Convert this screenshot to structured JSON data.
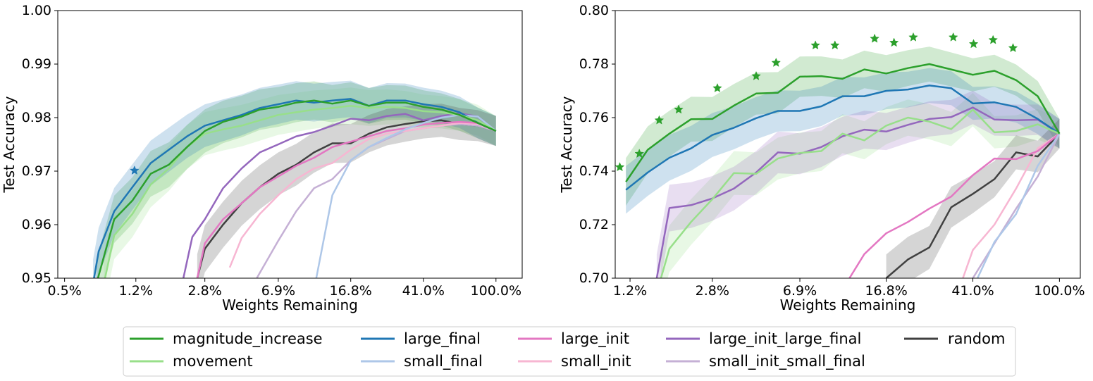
{
  "chart_data": [
    {
      "type": "line",
      "xlabel": "Weights Remaining",
      "ylabel": "Test Accuracy",
      "ylim": [
        0.95,
        1.0
      ],
      "x_scale": "log",
      "x_ticks": [
        {
          "value": 1.0,
          "label": "100.0%"
        },
        {
          "value": 0.41,
          "label": "41.0%"
        },
        {
          "value": 0.168,
          "label": "16.8%"
        },
        {
          "value": 0.069,
          "label": "6.9%"
        },
        {
          "value": 0.028,
          "label": "2.8%"
        },
        {
          "value": 0.012,
          "label": "1.2%"
        },
        {
          "value": 0.005,
          "label": "0.5%"
        }
      ],
      "y_ticks": [
        "0.95",
        "0.96",
        "0.97",
        "0.98",
        "0.99",
        "1.00"
      ],
      "series": [
        {
          "name": "magnitude_increase",
          "color": "#2ca02c",
          "band": true,
          "x": [
            1.0,
            0.8,
            0.64,
            0.512,
            0.41,
            0.328,
            0.262,
            0.21,
            0.168,
            0.134,
            0.107,
            0.086,
            0.069,
            0.055,
            0.044,
            0.035,
            0.028,
            0.0225,
            0.018,
            0.0144,
            0.0115,
            0.0092,
            0.0074
          ],
          "y": [
            0.9775,
            0.979,
            0.9805,
            0.9815,
            0.982,
            0.9828,
            0.9828,
            0.9822,
            0.9832,
            0.9826,
            0.9832,
            0.9828,
            0.982,
            0.9815,
            0.9802,
            0.9792,
            0.9775,
            0.9745,
            0.9712,
            0.9695,
            0.9645,
            0.961,
            0.949
          ]
        },
        {
          "name": "movement",
          "color": "#98df8a",
          "band": true,
          "x": [
            1.0,
            0.8,
            0.64,
            0.512,
            0.41,
            0.328,
            0.262,
            0.21,
            0.168,
            0.134,
            0.107,
            0.086,
            0.069,
            0.055,
            0.044,
            0.035,
            0.028,
            0.0225,
            0.018,
            0.0144,
            0.0115,
            0.0092,
            0.0081
          ],
          "y": [
            0.9775,
            0.9795,
            0.9805,
            0.981,
            0.9812,
            0.9818,
            0.982,
            0.9818,
            0.9822,
            0.9818,
            0.9815,
            0.981,
            0.9805,
            0.9795,
            0.9785,
            0.9778,
            0.977,
            0.9745,
            0.9705,
            0.9675,
            0.962,
            0.958,
            0.949
          ]
        },
        {
          "name": "large_final",
          "color": "#1f77b4",
          "band": true,
          "x": [
            1.0,
            0.8,
            0.64,
            0.512,
            0.41,
            0.328,
            0.262,
            0.21,
            0.168,
            0.134,
            0.107,
            0.086,
            0.069,
            0.055,
            0.044,
            0.035,
            0.028,
            0.0225,
            0.018,
            0.0144,
            0.0115,
            0.0092,
            0.0076,
            0.0071
          ],
          "y": [
            0.9775,
            0.979,
            0.981,
            0.982,
            0.9825,
            0.9832,
            0.9832,
            0.9822,
            0.9835,
            0.9832,
            0.9828,
            0.9832,
            0.9825,
            0.9818,
            0.9805,
            0.9795,
            0.9785,
            0.9765,
            0.974,
            0.9715,
            0.967,
            0.9625,
            0.955,
            0.949
          ]
        },
        {
          "name": "small_final",
          "color": "#aec7e8",
          "band": false,
          "x": [
            1.0,
            0.8,
            0.64,
            0.512,
            0.41,
            0.328,
            0.262,
            0.21,
            0.168,
            0.134,
            0.11
          ],
          "y": [
            0.9775,
            0.9802,
            0.9805,
            0.98,
            0.979,
            0.9778,
            0.9762,
            0.9745,
            0.972,
            0.9655,
            0.95
          ]
        },
        {
          "name": "large_init",
          "color": "#e377c2",
          "band": false,
          "x": [
            1.0,
            0.8,
            0.64,
            0.512,
            0.41,
            0.328,
            0.262,
            0.21,
            0.168,
            0.134,
            0.107,
            0.086,
            0.069,
            0.055,
            0.044,
            0.035,
            0.028,
            0.0255
          ],
          "y": [
            0.9775,
            0.979,
            0.9792,
            0.979,
            0.9787,
            0.978,
            0.9775,
            0.9765,
            0.9755,
            0.9745,
            0.9725,
            0.971,
            0.969,
            0.967,
            0.964,
            0.961,
            0.9565,
            0.95
          ]
        },
        {
          "name": "small_init",
          "color": "#f7b6d2",
          "band": false,
          "x": [
            1.0,
            0.8,
            0.64,
            0.512,
            0.41,
            0.328,
            0.262,
            0.21,
            0.168,
            0.134,
            0.107,
            0.086,
            0.069,
            0.055,
            0.044,
            0.038
          ],
          "y": [
            0.9775,
            0.9788,
            0.979,
            0.9785,
            0.978,
            0.9775,
            0.977,
            0.976,
            0.974,
            0.9715,
            0.9705,
            0.9685,
            0.9655,
            0.962,
            0.9575,
            0.952
          ]
        },
        {
          "name": "large_init_large_final",
          "color": "#9467bd",
          "band": false,
          "x": [
            1.0,
            0.8,
            0.64,
            0.512,
            0.41,
            0.328,
            0.262,
            0.21,
            0.168,
            0.134,
            0.107,
            0.086,
            0.069,
            0.055,
            0.044,
            0.035,
            0.028,
            0.024,
            0.0215
          ],
          "y": [
            0.9775,
            0.9802,
            0.9808,
            0.9803,
            0.9795,
            0.9807,
            0.9803,
            0.9795,
            0.9798,
            0.9785,
            0.9773,
            0.9765,
            0.975,
            0.9735,
            0.9705,
            0.9668,
            0.961,
            0.9577,
            0.95
          ]
        },
        {
          "name": "small_init_small_final",
          "color": "#c5b0d5",
          "band": false,
          "x": [
            1.0,
            0.8,
            0.64,
            0.512,
            0.41,
            0.328,
            0.262,
            0.21,
            0.168,
            0.134,
            0.107,
            0.086,
            0.069,
            0.055,
            0.053
          ],
          "y": [
            0.9775,
            0.9785,
            0.9788,
            0.9785,
            0.978,
            0.9775,
            0.976,
            0.9745,
            0.972,
            0.9685,
            0.9668,
            0.9625,
            0.957,
            0.951,
            0.95
          ]
        },
        {
          "name": "random",
          "color": "#404040",
          "band": true,
          "x": [
            1.0,
            0.8,
            0.64,
            0.512,
            0.41,
            0.328,
            0.262,
            0.21,
            0.168,
            0.134,
            0.107,
            0.086,
            0.069,
            0.055,
            0.044,
            0.035,
            0.028,
            0.0255
          ],
          "y": [
            0.9775,
            0.9785,
            0.9788,
            0.9795,
            0.9793,
            0.9788,
            0.9782,
            0.977,
            0.9752,
            0.9752,
            0.9735,
            0.9712,
            0.9695,
            0.967,
            0.964,
            0.96,
            0.9555,
            0.95
          ]
        }
      ],
      "markers": [
        {
          "series": "large_final",
          "x": 0.0118,
          "y": 0.9701,
          "color": "#1f77b4"
        }
      ]
    },
    {
      "type": "line",
      "xlabel": "Weights Remaining",
      "ylabel": "Test Accuracy",
      "ylim": [
        0.7,
        0.8
      ],
      "x_scale": "log",
      "x_ticks": [
        {
          "value": 1.0,
          "label": "100.0%"
        },
        {
          "value": 0.41,
          "label": "41.0%"
        },
        {
          "value": 0.168,
          "label": "16.8%"
        },
        {
          "value": 0.069,
          "label": "6.9%"
        },
        {
          "value": 0.028,
          "label": "2.8%"
        },
        {
          "value": 0.012,
          "label": "1.2%"
        }
      ],
      "y_ticks": [
        "0.70",
        "0.72",
        "0.74",
        "0.76",
        "0.78",
        "0.80"
      ],
      "series": [
        {
          "name": "magnitude_increase",
          "color": "#2ca02c",
          "band": true,
          "x": [
            1.0,
            0.8,
            0.64,
            0.512,
            0.41,
            0.328,
            0.262,
            0.21,
            0.168,
            0.134,
            0.107,
            0.086,
            0.069,
            0.055,
            0.044,
            0.035,
            0.028,
            0.0225,
            0.018,
            0.0144,
            0.0115
          ],
          "y": [
            0.754,
            0.768,
            0.774,
            0.7775,
            0.776,
            0.778,
            0.78,
            0.7785,
            0.7765,
            0.778,
            0.7745,
            0.7755,
            0.7753,
            0.7693,
            0.769,
            0.7645,
            0.7595,
            0.7594,
            0.754,
            0.748,
            0.736
          ]
        },
        {
          "name": "movement",
          "color": "#98df8a",
          "band": true,
          "x": [
            1.0,
            0.8,
            0.64,
            0.512,
            0.41,
            0.328,
            0.262,
            0.21,
            0.168,
            0.134,
            0.107,
            0.086,
            0.069,
            0.055,
            0.044,
            0.035,
            0.028,
            0.0225,
            0.018,
            0.0165
          ],
          "y": [
            0.754,
            0.7575,
            0.755,
            0.7545,
            0.763,
            0.7557,
            0.7585,
            0.76,
            0.757,
            0.7515,
            0.754,
            0.7475,
            0.7468,
            0.7447,
            0.739,
            0.7393,
            0.7295,
            0.721,
            0.711,
            0.7
          ]
        },
        {
          "name": "large_final",
          "color": "#1f77b4",
          "band": true,
          "x": [
            1.0,
            0.8,
            0.64,
            0.512,
            0.41,
            0.328,
            0.262,
            0.21,
            0.168,
            0.134,
            0.107,
            0.086,
            0.069,
            0.055,
            0.044,
            0.035,
            0.028,
            0.0225,
            0.018,
            0.0144,
            0.0115
          ],
          "y": [
            0.754,
            0.7595,
            0.764,
            0.7657,
            0.7653,
            0.771,
            0.772,
            0.7705,
            0.77,
            0.768,
            0.768,
            0.7642,
            0.7625,
            0.7625,
            0.7598,
            0.7562,
            0.7535,
            0.7485,
            0.745,
            0.7395,
            0.733
          ]
        },
        {
          "name": "small_final",
          "color": "#aec7e8",
          "band": false,
          "x": [
            1.0,
            0.8,
            0.64,
            0.512,
            0.43
          ],
          "y": [
            0.754,
            0.742,
            0.724,
            0.7135,
            0.7
          ]
        },
        {
          "name": "large_init",
          "color": "#e377c2",
          "band": false,
          "x": [
            1.0,
            0.8,
            0.64,
            0.512,
            0.41,
            0.328,
            0.262,
            0.21,
            0.168,
            0.134,
            0.115
          ],
          "y": [
            0.754,
            0.7475,
            0.7445,
            0.7447,
            0.7385,
            0.7305,
            0.726,
            0.721,
            0.7168,
            0.709,
            0.7
          ]
        },
        {
          "name": "small_init",
          "color": "#f7b6d2",
          "band": false,
          "x": [
            1.0,
            0.8,
            0.64,
            0.512,
            0.41,
            0.37
          ],
          "y": [
            0.754,
            0.7485,
            0.7335,
            0.72,
            0.7105,
            0.7
          ]
        },
        {
          "name": "large_init_large_final",
          "color": "#9467bd",
          "band": true,
          "x": [
            1.0,
            0.8,
            0.64,
            0.512,
            0.41,
            0.328,
            0.262,
            0.21,
            0.168,
            0.134,
            0.107,
            0.086,
            0.069,
            0.055,
            0.044,
            0.035,
            0.028,
            0.0225,
            0.018,
            0.0158
          ],
          "y": [
            0.754,
            0.7592,
            0.759,
            0.7593,
            0.7638,
            0.7602,
            0.7595,
            0.7573,
            0.7548,
            0.7555,
            0.753,
            0.749,
            0.7465,
            0.747,
            0.7395,
            0.7335,
            0.7298,
            0.7273,
            0.7262,
            0.7
          ]
        },
        {
          "name": "small_init_small_final",
          "color": "#c5b0d5",
          "band": false,
          "x": [
            1.0,
            0.8,
            0.64,
            0.512,
            0.41
          ],
          "y": [
            0.754,
            0.738,
            0.726,
            0.713,
            0.7
          ]
        },
        {
          "name": "random",
          "color": "#404040",
          "band": true,
          "x": [
            1.0,
            0.8,
            0.64,
            0.512,
            0.41,
            0.328,
            0.262,
            0.21,
            0.168
          ],
          "y": [
            0.754,
            0.7455,
            0.747,
            0.737,
            0.7315,
            0.7265,
            0.7115,
            0.707,
            0.7
          ]
        }
      ],
      "markers": [
        {
          "series": "magnitude_increase",
          "x": 0.62,
          "y": 0.786,
          "color": "#2ca02c"
        },
        {
          "series": "magnitude_increase",
          "x": 0.505,
          "y": 0.789,
          "color": "#2ca02c"
        },
        {
          "series": "magnitude_increase",
          "x": 0.413,
          "y": 0.7875,
          "color": "#2ca02c"
        },
        {
          "series": "magnitude_increase",
          "x": 0.335,
          "y": 0.79,
          "color": "#2ca02c"
        },
        {
          "series": "magnitude_increase",
          "x": 0.222,
          "y": 0.79,
          "color": "#2ca02c"
        },
        {
          "series": "magnitude_increase",
          "x": 0.182,
          "y": 0.788,
          "color": "#2ca02c"
        },
        {
          "series": "magnitude_increase",
          "x": 0.149,
          "y": 0.7895,
          "color": "#2ca02c"
        },
        {
          "series": "magnitude_increase",
          "x": 0.099,
          "y": 0.787,
          "color": "#2ca02c"
        },
        {
          "series": "magnitude_increase",
          "x": 0.081,
          "y": 0.787,
          "color": "#2ca02c"
        },
        {
          "series": "magnitude_increase",
          "x": 0.054,
          "y": 0.7805,
          "color": "#2ca02c"
        },
        {
          "series": "magnitude_increase",
          "x": 0.044,
          "y": 0.7755,
          "color": "#2ca02c"
        },
        {
          "series": "magnitude_increase",
          "x": 0.0295,
          "y": 0.771,
          "color": "#2ca02c"
        },
        {
          "series": "magnitude_increase",
          "x": 0.0198,
          "y": 0.763,
          "color": "#2ca02c"
        },
        {
          "series": "magnitude_increase",
          "x": 0.0162,
          "y": 0.759,
          "color": "#2ca02c"
        },
        {
          "series": "magnitude_increase",
          "x": 0.0132,
          "y": 0.7465,
          "color": "#2ca02c"
        },
        {
          "series": "magnitude_increase",
          "x": 0.0108,
          "y": 0.7415,
          "color": "#2ca02c"
        }
      ]
    }
  ],
  "legend": {
    "placement": "bottom-center",
    "entries": [
      {
        "label": "magnitude_increase",
        "color": "#2ca02c"
      },
      {
        "label": "movement",
        "color": "#98df8a"
      },
      {
        "label": "large_final",
        "color": "#1f77b4"
      },
      {
        "label": "small_final",
        "color": "#aec7e8"
      },
      {
        "label": "large_init",
        "color": "#e377c2"
      },
      {
        "label": "small_init",
        "color": "#f7b6d2"
      },
      {
        "label": "large_init_large_final",
        "color": "#9467bd"
      },
      {
        "label": "small_init_small_final",
        "color": "#c5b0d5"
      },
      {
        "label": "random",
        "color": "#404040"
      }
    ]
  }
}
